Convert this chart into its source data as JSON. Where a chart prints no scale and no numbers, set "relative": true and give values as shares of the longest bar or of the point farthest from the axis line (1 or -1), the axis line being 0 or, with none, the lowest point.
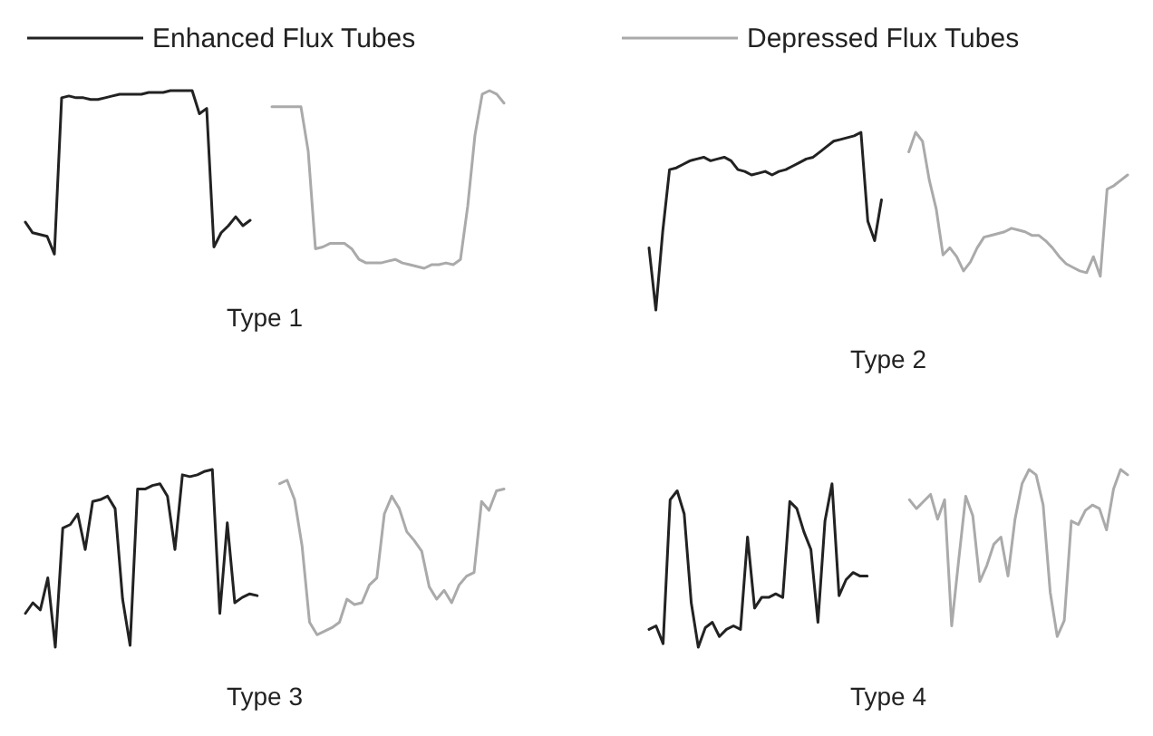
{
  "chart_data": [
    {
      "type": "line",
      "title": "Type 1",
      "relative": true,
      "legend": "top",
      "categories": [
        null,
        null,
        null,
        null,
        null,
        null,
        null,
        null,
        null,
        null,
        null,
        null,
        null,
        null,
        null,
        null,
        null,
        null,
        null,
        null,
        null,
        null,
        null,
        null,
        null,
        null,
        null,
        null,
        null,
        null,
        null,
        null,
        null,
        null,
        null,
        null,
        null,
        null,
        null,
        null,
        null,
        null,
        null,
        null,
        null,
        null,
        null,
        null,
        null,
        null,
        null,
        null,
        null,
        null,
        null,
        null,
        null,
        null,
        null,
        null,
        null,
        null,
        null,
        null,
        null,
        null,
        null
      ],
      "series": [
        {
          "name": "Enhanced Flux Tubes",
          "color": "#222222",
          "values": [
            0.26,
            0.2,
            0.19,
            0.18,
            0.08,
            0.96,
            0.97,
            0.96,
            0.96,
            0.95,
            0.95,
            0.96,
            0.97,
            0.98,
            0.98,
            0.98,
            0.98,
            0.99,
            0.99,
            0.99,
            1.0,
            1.0,
            1.0,
            1.0,
            0.87,
            0.9,
            0.12,
            0.2,
            0.24,
            0.29,
            0.24,
            0.27,
            null,
            null,
            null,
            null,
            null,
            null,
            null,
            null,
            null,
            null,
            null,
            null,
            null,
            null,
            null,
            null,
            null,
            null,
            null,
            null,
            null,
            null,
            null,
            null,
            null,
            null,
            null,
            null,
            null,
            null,
            null,
            null,
            null,
            null,
            null
          ]
        },
        {
          "name": "Depressed Flux Tubes",
          "color": "#aaaaaa",
          "values": [
            null,
            null,
            null,
            null,
            null,
            null,
            null,
            null,
            null,
            null,
            null,
            null,
            null,
            null,
            null,
            null,
            null,
            null,
            null,
            null,
            null,
            null,
            null,
            null,
            null,
            null,
            null,
            null,
            null,
            null,
            null,
            null,
            null,
            null,
            0.91,
            0.91,
            0.91,
            0.91,
            0.91,
            0.66,
            0.11,
            0.12,
            0.14,
            0.14,
            0.14,
            0.11,
            0.05,
            0.03,
            0.03,
            0.03,
            0.04,
            0.05,
            0.03,
            0.02,
            0.01,
            0,
            0.02,
            0.02,
            0.03,
            0.02,
            0.05,
            0.35,
            0.75,
            0.98,
            1.0,
            0.98,
            0.93
          ]
        }
      ]
    },
    {
      "type": "line",
      "title": "Type 2",
      "relative": true,
      "categories": [
        null,
        null,
        null,
        null,
        null,
        null,
        null,
        null,
        null,
        null,
        null,
        null,
        null,
        null,
        null,
        null,
        null,
        null,
        null,
        null,
        null,
        null,
        null,
        null,
        null,
        null,
        null,
        null,
        null,
        null,
        null,
        null,
        null,
        null,
        null,
        null,
        null,
        null,
        null,
        null,
        null,
        null,
        null,
        null,
        null,
        null,
        null,
        null,
        null,
        null,
        null,
        null,
        null,
        null,
        null,
        null,
        null,
        null,
        null,
        null,
        null,
        null,
        null,
        null,
        null,
        null,
        null,
        null,
        null,
        null,
        null
      ],
      "series": [
        {
          "color": "#222222",
          "values": [
            0.35,
            0,
            0.44,
            0.79,
            0.8,
            0.82,
            0.84,
            0.85,
            0.86,
            0.84,
            0.85,
            0.86,
            0.84,
            0.79,
            0.78,
            0.76,
            0.77,
            0.78,
            0.76,
            0.78,
            0.79,
            0.81,
            0.83,
            0.85,
            0.86,
            0.89,
            0.92,
            0.95,
            0.96,
            0.97,
            0.98,
            1.0,
            0.5,
            0.39,
            0.62,
            null,
            null,
            null,
            null,
            null,
            null,
            null,
            null,
            null,
            null,
            null,
            null,
            null,
            null,
            null,
            null,
            null,
            null,
            null,
            null,
            null,
            null,
            null,
            null,
            null,
            null,
            null,
            null,
            null,
            null,
            null,
            null,
            null,
            null,
            null,
            null
          ]
        },
        {
          "color": "#aaaaaa",
          "values": [
            null,
            null,
            null,
            null,
            null,
            null,
            null,
            null,
            null,
            null,
            null,
            null,
            null,
            null,
            null,
            null,
            null,
            null,
            null,
            null,
            null,
            null,
            null,
            null,
            null,
            null,
            null,
            null,
            null,
            null,
            null,
            null,
            null,
            null,
            null,
            null,
            null,
            null,
            0.89,
            1.0,
            0.95,
            0.73,
            0.57,
            0.31,
            0.35,
            0.3,
            0.22,
            0.27,
            0.35,
            0.41,
            0.42,
            0.43,
            0.44,
            0.46,
            0.45,
            0.44,
            0.42,
            0.42,
            0.39,
            0.35,
            0.3,
            0.26,
            0.24,
            0.22,
            0.21,
            0.3,
            0.19,
            0.68,
            0.7,
            0.73,
            0.76
          ]
        }
      ]
    },
    {
      "type": "line",
      "title": "Type 3",
      "relative": true,
      "categories": [
        null,
        null,
        null,
        null,
        null,
        null,
        null,
        null,
        null,
        null,
        null,
        null,
        null,
        null,
        null,
        null,
        null,
        null,
        null,
        null,
        null,
        null,
        null,
        null,
        null,
        null,
        null,
        null,
        null,
        null,
        null,
        null,
        null,
        null,
        null,
        null,
        null,
        null,
        null,
        null,
        null,
        null,
        null,
        null,
        null,
        null,
        null,
        null,
        null,
        null,
        null,
        null,
        null,
        null,
        null,
        null,
        null,
        null,
        null,
        null,
        null,
        null,
        null,
        null,
        null
      ],
      "series": [
        {
          "color": "#222222",
          "values": [
            0.19,
            0.25,
            0.21,
            0.39,
            0,
            0.67,
            0.69,
            0.75,
            0.55,
            0.82,
            0.83,
            0.85,
            0.78,
            0.27,
            0.01,
            0.89,
            0.89,
            0.91,
            0.92,
            0.85,
            0.55,
            0.97,
            0.96,
            0.97,
            0.99,
            1.0,
            0.19,
            0.7,
            0.25,
            0.28,
            0.3,
            0.29,
            null,
            null,
            null,
            null,
            null,
            null,
            null,
            null,
            null,
            null,
            null,
            null,
            null,
            null,
            null,
            null,
            null,
            null,
            null,
            null,
            null,
            null,
            null,
            null,
            null,
            null,
            null,
            null,
            null,
            null,
            null,
            null,
            null
          ]
        },
        {
          "color": "#aaaaaa",
          "values": [
            null,
            null,
            null,
            null,
            null,
            null,
            null,
            null,
            null,
            null,
            null,
            null,
            null,
            null,
            null,
            null,
            null,
            null,
            null,
            null,
            null,
            null,
            null,
            null,
            null,
            null,
            null,
            null,
            null,
            null,
            null,
            null,
            null,
            null,
            0.92,
            0.94,
            0.83,
            0.57,
            0.14,
            0.07,
            0.09,
            0.11,
            0.14,
            0.27,
            0.24,
            0.25,
            0.35,
            0.39,
            0.75,
            0.85,
            0.78,
            0.65,
            0.6,
            0.54,
            0.34,
            0.27,
            0.32,
            0.25,
            0.35,
            0.4,
            0.42,
            0.82,
            0.77,
            0.88,
            0.89
          ]
        }
      ]
    },
    {
      "type": "line",
      "title": "Type 4",
      "relative": true,
      "categories": [
        null,
        null,
        null,
        null,
        null,
        null,
        null,
        null,
        null,
        null,
        null,
        null,
        null,
        null,
        null,
        null,
        null,
        null,
        null,
        null,
        null,
        null,
        null,
        null,
        null,
        null,
        null,
        null,
        null,
        null,
        null,
        null,
        null,
        null,
        null,
        null,
        null,
        null,
        null,
        null,
        null,
        null,
        null,
        null,
        null,
        null,
        null,
        null,
        null,
        null,
        null,
        null,
        null,
        null,
        null,
        null,
        null,
        null,
        null,
        null,
        null,
        null,
        null,
        null,
        null,
        null,
        null,
        null,
        null
      ],
      "series": [
        {
          "color": "#222222",
          "values": [
            0.1,
            0.12,
            0.02,
            0.83,
            0.88,
            0.75,
            0.25,
            0,
            0.11,
            0.14,
            0.06,
            0.1,
            0.12,
            0.1,
            0.62,
            0.22,
            0.28,
            0.28,
            0.3,
            0.28,
            0.82,
            0.78,
            0.65,
            0.55,
            0.14,
            0.71,
            0.92,
            0.29,
            0.38,
            0.42,
            0.4,
            0.4,
            null,
            null,
            null,
            null,
            null,
            null,
            null,
            null,
            null,
            null,
            null,
            null,
            null,
            null,
            null,
            null,
            null,
            null,
            null,
            null,
            null,
            null,
            null,
            null,
            null,
            null,
            null,
            null,
            null,
            null,
            null,
            null,
            null,
            null,
            null,
            null,
            null
          ]
        },
        {
          "color": "#aaaaaa",
          "values": [
            null,
            null,
            null,
            null,
            null,
            null,
            null,
            null,
            null,
            null,
            null,
            null,
            null,
            null,
            null,
            null,
            null,
            null,
            null,
            null,
            null,
            null,
            null,
            null,
            null,
            null,
            null,
            null,
            null,
            null,
            null,
            null,
            null,
            null,
            null,
            null,
            null,
            0.83,
            0.78,
            0.82,
            0.86,
            0.72,
            0.83,
            0.12,
            0.49,
            0.85,
            0.74,
            0.37,
            0.46,
            0.58,
            0.62,
            0.4,
            0.72,
            0.92,
            1.0,
            0.97,
            0.8,
            0.31,
            0.06,
            0.15,
            0.71,
            0.69,
            0.77,
            0.8,
            0.78,
            0.66,
            0.89,
            1.0,
            0.97
          ]
        }
      ]
    }
  ]
}
